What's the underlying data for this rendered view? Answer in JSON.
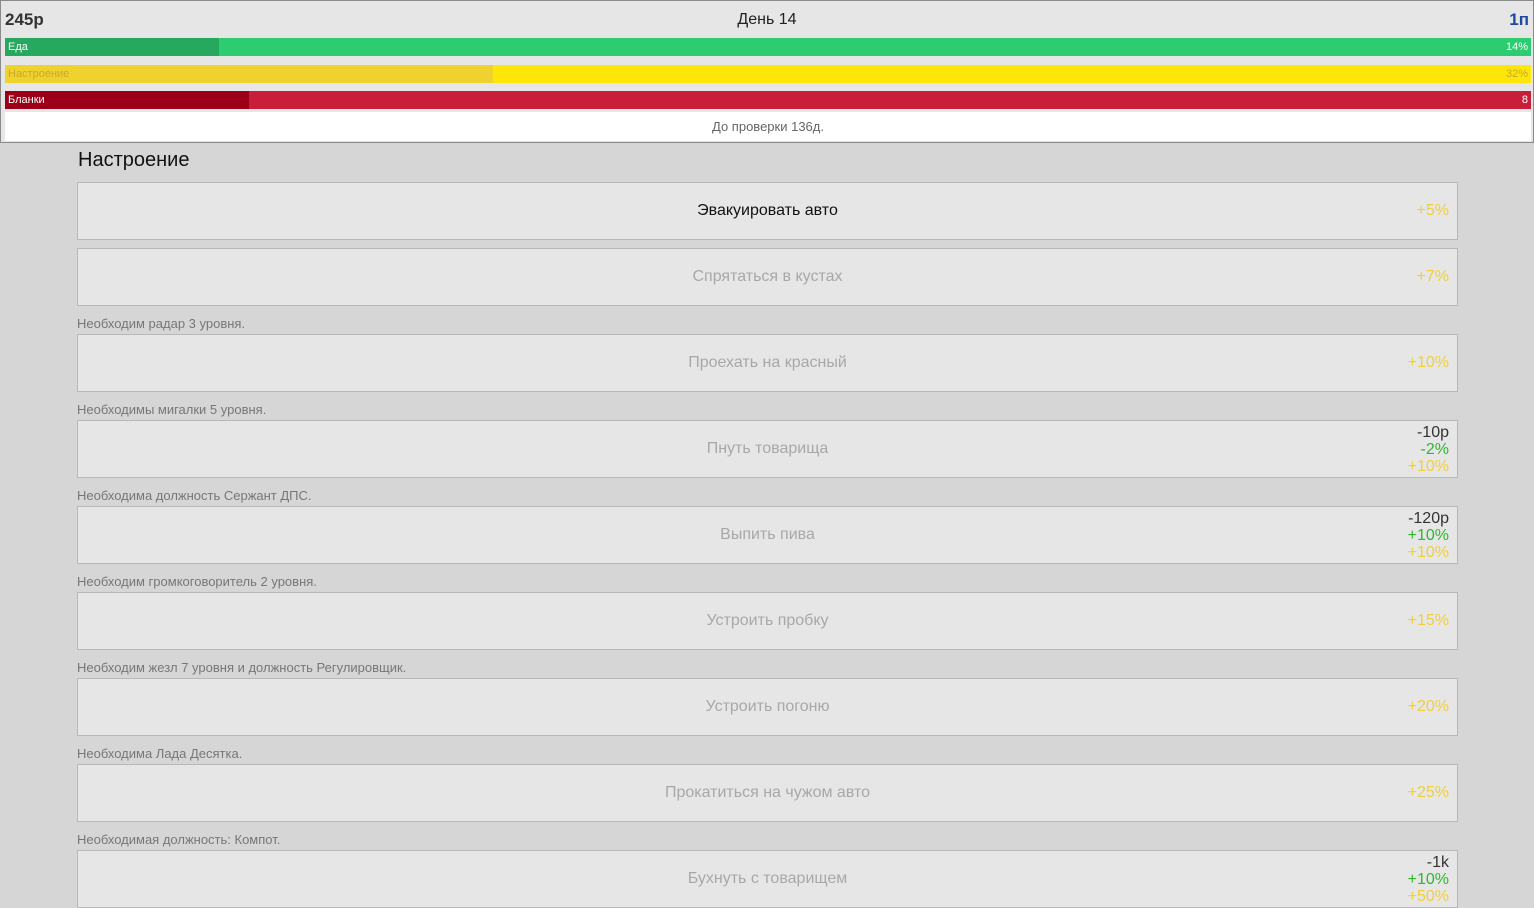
{
  "hud": {
    "money": "245р",
    "day": "День 14",
    "level": "1п",
    "check": "До проверки 136д.",
    "bars": [
      {
        "label": "Еда",
        "value": "14%",
        "fraction": 0.14,
        "bg": "#2ecc71",
        "fill": "#27a85f",
        "text": "#ffffff"
      },
      {
        "label": "Настроение",
        "value": "32%",
        "fraction": 0.32,
        "bg": "#ffe60a",
        "fill": "#f0d22f",
        "text": "#c9a92a"
      },
      {
        "label": "Бланки",
        "value": "8",
        "fraction": 0.16,
        "bg": "#c81e3a",
        "fill": "#9b0018",
        "text": "#ffffff"
      }
    ]
  },
  "section_title": "Настроение",
  "colors": {
    "money": "#333333",
    "health": "#2db82d",
    "mood": "#f0cf3a"
  },
  "actions": [
    {
      "name": "Эвакуировать авто",
      "active": true,
      "effects": [
        {
          "text": "+5%",
          "type": "mood"
        }
      ],
      "hint": ""
    },
    {
      "name": "Спрятаться в кустах",
      "active": false,
      "effects": [
        {
          "text": "+7%",
          "type": "mood"
        }
      ],
      "hint": "Необходим радар 3 уровня."
    },
    {
      "name": "Проехать на красный",
      "active": false,
      "effects": [
        {
          "text": "+10%",
          "type": "mood"
        }
      ],
      "hint": "Необходимы мигалки 5 уровня."
    },
    {
      "name": "Пнуть товарища",
      "active": false,
      "effects": [
        {
          "text": "-10р",
          "type": "money"
        },
        {
          "text": "-2%",
          "type": "health"
        },
        {
          "text": "+10%",
          "type": "mood"
        }
      ],
      "hint": "Необходима должность Сержант ДПС."
    },
    {
      "name": "Выпить пива",
      "active": false,
      "effects": [
        {
          "text": "-120р",
          "type": "money"
        },
        {
          "text": "+10%",
          "type": "health"
        },
        {
          "text": "+10%",
          "type": "mood"
        }
      ],
      "hint": "Необходим громкоговоритель 2 уровня."
    },
    {
      "name": "Устроить пробку",
      "active": false,
      "effects": [
        {
          "text": "+15%",
          "type": "mood"
        }
      ],
      "hint": "Необходим жезл 7 уровня и должность Регулировщик."
    },
    {
      "name": "Устроить погоню",
      "active": false,
      "effects": [
        {
          "text": "+20%",
          "type": "mood"
        }
      ],
      "hint": "Необходима Лада Десятка."
    },
    {
      "name": "Прокатиться на чужом авто",
      "active": false,
      "effects": [
        {
          "text": "+25%",
          "type": "mood"
        }
      ],
      "hint": "Необходимая должность: Компот."
    },
    {
      "name": "Бухнуть с товарищем",
      "active": false,
      "effects": [
        {
          "text": "-1k",
          "type": "money"
        },
        {
          "text": "+10%",
          "type": "health"
        },
        {
          "text": "+50%",
          "type": "mood"
        }
      ],
      "hint": ""
    }
  ]
}
